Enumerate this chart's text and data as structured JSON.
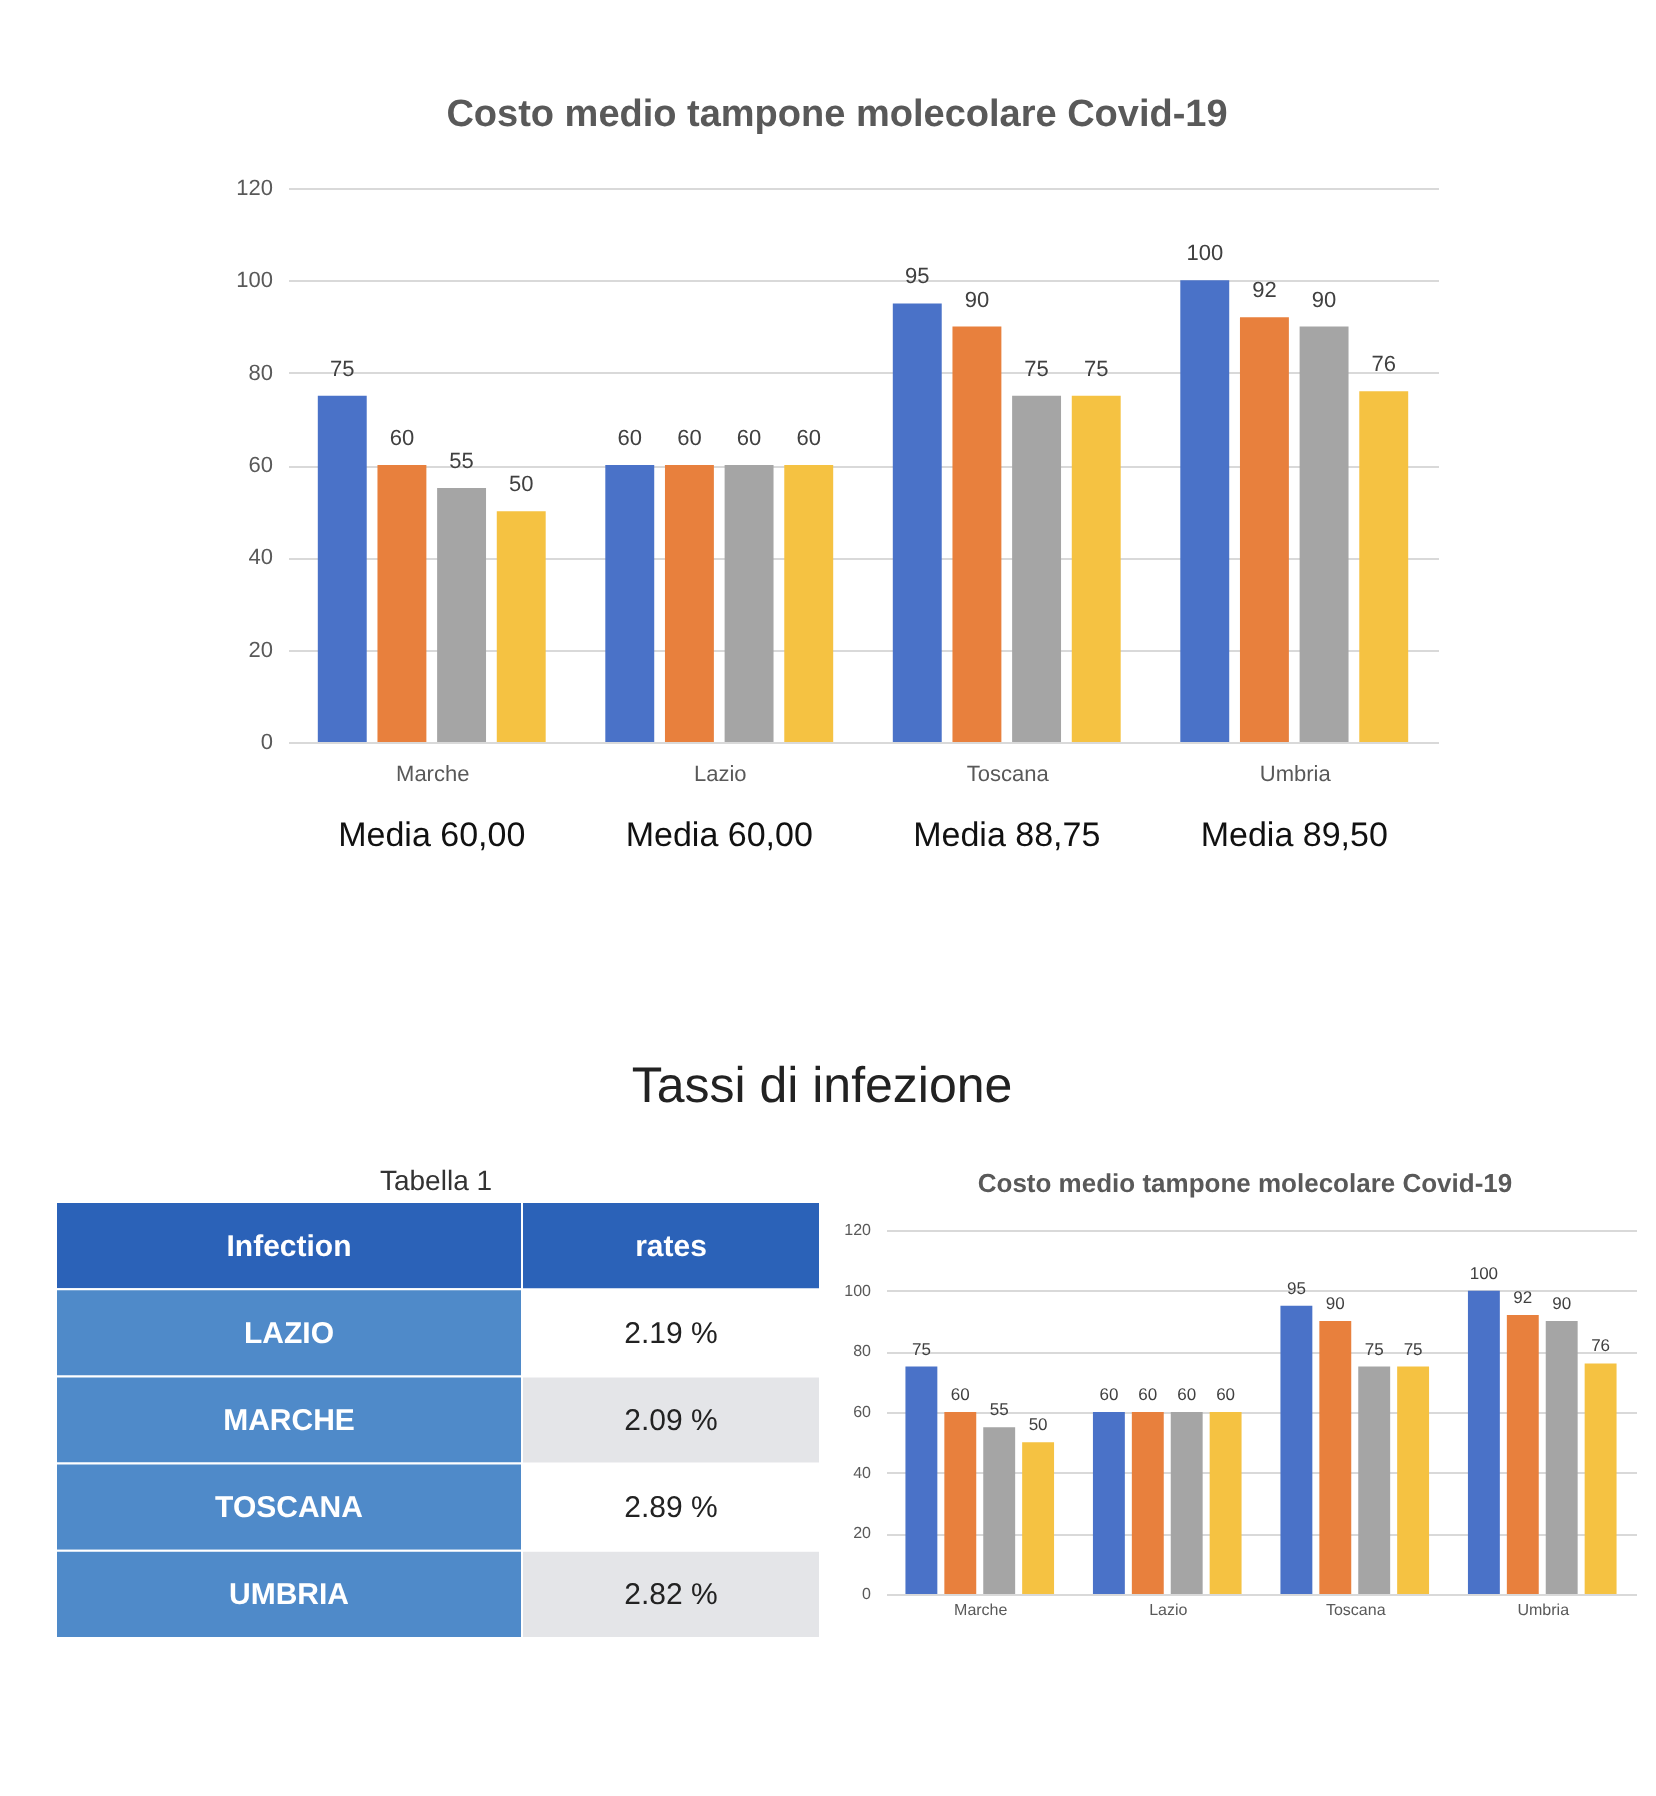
{
  "chart_data": [
    {
      "type": "bar",
      "title": "Costo medio tampone molecolare Covid-19",
      "categories": [
        "Marche",
        "Lazio",
        "Toscana",
        "Umbria"
      ],
      "series": [
        {
          "color": "#4a72c8",
          "values": [
            75,
            60,
            95,
            100
          ]
        },
        {
          "color": "#e8803d",
          "values": [
            60,
            60,
            90,
            92
          ]
        },
        {
          "color": "#a5a5a5",
          "values": [
            55,
            60,
            75,
            90
          ]
        },
        {
          "color": "#f5c242",
          "values": [
            50,
            60,
            75,
            76
          ]
        }
      ],
      "ylim": [
        0,
        120
      ],
      "yticks": [
        0,
        20,
        40,
        60,
        80,
        100,
        120
      ],
      "grid": "y",
      "data_labels": true,
      "annotations": [
        "Media 60,00",
        "Media 60,00",
        "Media 88,75",
        "Media 89,50"
      ]
    },
    {
      "type": "other",
      "title": "Tassi di infezione",
      "subtitle": "Tabella 1",
      "annotations": [
        "Infection",
        "rates",
        "LAZIO",
        "2.19 %",
        "MARCHE",
        "2.09 %",
        "TOSCANA",
        "2.89 %",
        "UMBRIA",
        "2.82 %"
      ]
    },
    {
      "type": "bar",
      "title": "Costo medio tampone molecolare Covid-19",
      "categories": [
        "Marche",
        "Lazio",
        "Toscana",
        "Umbria"
      ],
      "series": [
        {
          "color": "#4a72c8",
          "values": [
            75,
            60,
            95,
            100
          ]
        },
        {
          "color": "#e8803d",
          "values": [
            60,
            60,
            90,
            92
          ]
        },
        {
          "color": "#a5a5a5",
          "values": [
            55,
            60,
            75,
            90
          ]
        },
        {
          "color": "#f5c242",
          "values": [
            50,
            60,
            75,
            76
          ]
        }
      ],
      "ylim": [
        0,
        120
      ],
      "yticks": [
        0,
        20,
        40,
        60,
        80,
        100,
        120
      ],
      "grid": "y",
      "data_labels": true
    }
  ]
}
